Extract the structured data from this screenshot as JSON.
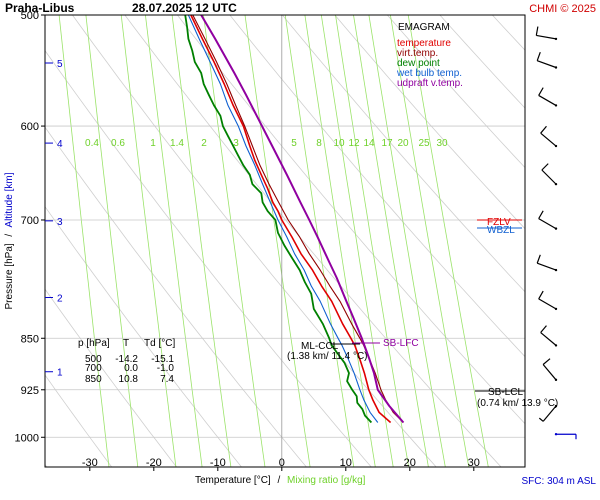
{
  "header": {
    "station": "Praha-Libus",
    "datetime": "28.07.2025 12 UTC",
    "copyright": "CHMI © 2025"
  },
  "legend": {
    "title": "EMAGRAM",
    "items": [
      {
        "label": "temperature",
        "color": "#e00000"
      },
      {
        "label": "virt.temp.",
        "color": "#900000"
      },
      {
        "label": "dew point",
        "color": "#008000"
      },
      {
        "label": "wet bulb temp.",
        "color": "#1060d0"
      },
      {
        "label": "udpraft v.temp.",
        "color": "#9000a0"
      }
    ]
  },
  "axes": {
    "ylabel_pressure": "Pressure [hPa]",
    "ylabel_sep": "/",
    "ylabel_altitude": "Altitude [km]",
    "xlabel_temp": "Temperature [°C]",
    "xlabel_sep": "/",
    "xlabel_mix": "Mixing ratio [g/kg]",
    "sfc_label": "SFC: 304 m ASL"
  },
  "table": {
    "header": [
      "p [hPa]",
      "T",
      "Td [°C]"
    ],
    "rows": [
      [
        "500",
        "-14.2",
        "-15.1"
      ],
      [
        "700",
        "0.0",
        "-1.0"
      ],
      [
        "850",
        "10.8",
        "7.4"
      ]
    ]
  },
  "annotations": {
    "fzlv": "FZLV",
    "wbzl": "WBZL",
    "sb_lfc": "SB-LFC",
    "ml_ccl": "ML-CCL",
    "ml_ccl_detail": "(1.38 km/ 11.4 °C)",
    "sb_lcl": "SB-LCL",
    "sb_lcl_detail": "(0.74 km/ 13.9 °C)"
  },
  "chart_data": {
    "type": "line",
    "title": "EMAGRAM",
    "x_axis": {
      "label": "Temperature [°C]",
      "range": [
        -37,
        38
      ],
      "ticks": [
        -30,
        -20,
        -10,
        0,
        10,
        20,
        30
      ]
    },
    "y_axis": {
      "label": "Pressure [hPa]",
      "scale": "log",
      "range": [
        1050,
        500
      ],
      "ticks": [
        500,
        600,
        700,
        850,
        925,
        1000
      ]
    },
    "altitude_ticks_km": [
      1,
      2,
      3,
      4,
      5
    ],
    "altitude_tick_pressures": [
      898,
      795,
      701,
      617,
      541
    ],
    "mixing_ratio_lines_gkg": [
      "0.4",
      "0.6",
      "1",
      "1.4",
      "2",
      "3",
      "5",
      "8",
      "10",
      "12",
      "14",
      "17",
      "20",
      "25",
      "30"
    ],
    "series": [
      {
        "name": "temperature",
        "color": "#e00000",
        "pressure": [
          976,
          960,
          940,
          925,
          900,
          880,
          860,
          850,
          830,
          800,
          780,
          760,
          740,
          720,
          700,
          690,
          680,
          665,
          650,
          635,
          620,
          600,
          580,
          560,
          540,
          520,
          500
        ],
        "values": [
          17.0,
          15.2,
          14.2,
          13.6,
          12.9,
          12.2,
          11.4,
          10.8,
          9.5,
          7.8,
          6.2,
          4.8,
          3.0,
          1.6,
          0.0,
          -0.6,
          -1.4,
          -2.2,
          -3.2,
          -4.2,
          -5.0,
          -6.0,
          -7.6,
          -9.0,
          -10.6,
          -12.4,
          -14.2
        ]
      },
      {
        "name": "virt.temp.",
        "color": "#900000",
        "pressure": [
          976,
          960,
          940,
          925,
          900,
          880,
          860,
          850,
          830,
          800,
          780,
          760,
          740,
          720,
          700,
          680,
          660,
          640,
          620,
          600,
          580,
          560,
          540,
          520,
          500
        ],
        "values": [
          19.0,
          17.4,
          16.2,
          15.5,
          14.6,
          13.7,
          12.8,
          12.2,
          10.9,
          9.1,
          7.5,
          6.0,
          4.3,
          2.8,
          1.0,
          -0.5,
          -2.0,
          -3.4,
          -4.6,
          -5.8,
          -7.2,
          -8.6,
          -10.2,
          -12.0,
          -13.9
        ]
      },
      {
        "name": "dew point",
        "color": "#008000",
        "pressure": [
          976,
          965,
          955,
          945,
          935,
          925,
          912,
          900,
          885,
          870,
          860,
          850,
          830,
          810,
          790,
          775,
          760,
          745,
          730,
          715,
          700,
          690,
          680,
          670,
          660,
          650,
          640,
          630,
          620,
          610,
          600,
          590,
          580,
          570,
          560,
          550,
          540,
          530,
          520,
          510,
          500
        ],
        "values": [
          14.0,
          13.0,
          12.6,
          11.8,
          11.7,
          11.0,
          10.2,
          10.5,
          9.8,
          8.6,
          7.8,
          7.4,
          6.4,
          5.0,
          4.6,
          3.6,
          2.8,
          1.6,
          0.4,
          -0.6,
          -1.0,
          -2.2,
          -3.0,
          -3.2,
          -4.6,
          -5.0,
          -6.0,
          -6.8,
          -7.6,
          -8.4,
          -9.2,
          -9.6,
          -10.6,
          -11.4,
          -12.2,
          -12.6,
          -13.6,
          -14.0,
          -14.6,
          -14.8,
          -15.1
        ]
      },
      {
        "name": "wet bulb temp.",
        "color": "#1060d0",
        "pressure": [
          976,
          960,
          940,
          925,
          900,
          880,
          860,
          850,
          830,
          800,
          780,
          760,
          740,
          720,
          700,
          680,
          660,
          640,
          620,
          600,
          580,
          560,
          540,
          520,
          500
        ],
        "values": [
          15.0,
          13.8,
          12.8,
          12.2,
          11.3,
          10.4,
          9.4,
          8.8,
          7.6,
          6.0,
          4.6,
          3.5,
          2.0,
          0.8,
          -0.6,
          -1.8,
          -3.0,
          -4.2,
          -5.6,
          -6.8,
          -8.4,
          -9.6,
          -11.2,
          -12.9,
          -14.6
        ]
      },
      {
        "name": "udpraft v.temp.",
        "color": "#9000a0",
        "pressure": [
          976,
          950,
          925,
          900,
          880,
          860,
          850,
          820,
          800,
          770,
          750,
          720,
          700,
          680,
          650,
          620,
          600,
          570,
          550,
          520,
          500
        ],
        "values": [
          19.0,
          16.8,
          15.0,
          14.4,
          13.7,
          12.9,
          12.5,
          11.1,
          10.1,
          8.6,
          7.4,
          5.6,
          4.3,
          2.9,
          0.8,
          -1.5,
          -3.1,
          -5.6,
          -7.4,
          -10.4,
          -12.6
        ]
      }
    ],
    "levels": [
      {
        "name": "FZLV",
        "pressure": 696
      },
      {
        "name": "WBZL",
        "pressure": 708
      },
      {
        "name": "SB-LFC",
        "pressure": 855
      },
      {
        "name": "ML-CCL",
        "pressure": 856
      },
      {
        "name": "SB-LCL",
        "pressure": 924
      }
    ],
    "wind_barbs": {
      "pressure": [
        520,
        545,
        580,
        620,
        660,
        710,
        760,
        810,
        860,
        910,
        950,
        995
      ],
      "direction_deg": [
        280,
        290,
        300,
        310,
        315,
        300,
        290,
        300,
        310,
        320,
        220,
        90
      ],
      "speed_kt": [
        10,
        10,
        10,
        10,
        10,
        10,
        10,
        10,
        10,
        10,
        5,
        5
      ]
    }
  }
}
